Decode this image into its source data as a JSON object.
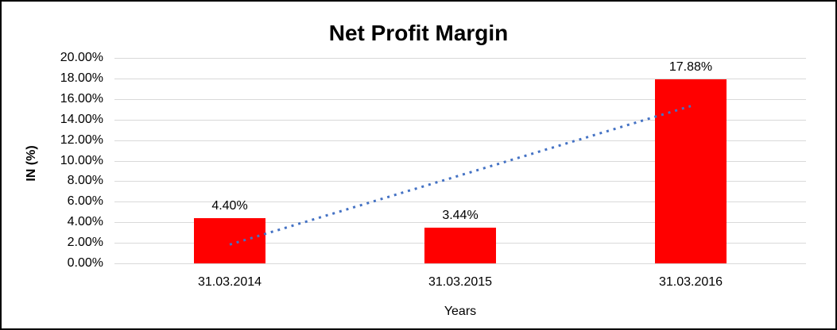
{
  "window": {
    "background_color": "#ffffff",
    "border_color": "#000000"
  },
  "chart_data": {
    "type": "bar",
    "title": "Net Profit Margin",
    "xlabel": "Years",
    "ylabel": "IN (%)",
    "categories": [
      "31.03.2014",
      "31.03.2015",
      "31.03.2016"
    ],
    "values": [
      4.4,
      3.44,
      17.88
    ],
    "data_labels": [
      "4.40%",
      "3.44%",
      "17.88%"
    ],
    "ylim": [
      0,
      20
    ],
    "y_ticks": [
      {
        "value": 0,
        "label": "0.00%"
      },
      {
        "value": 2,
        "label": "2.00%"
      },
      {
        "value": 4,
        "label": "4.00%"
      },
      {
        "value": 6,
        "label": "6.00%"
      },
      {
        "value": 8,
        "label": "8.00%"
      },
      {
        "value": 10,
        "label": "10.00%"
      },
      {
        "value": 12,
        "label": "12.00%"
      },
      {
        "value": 14,
        "label": "14.00%"
      },
      {
        "value": 16,
        "label": "16.00%"
      },
      {
        "value": 18,
        "label": "18.00%"
      },
      {
        "value": 20,
        "label": "20.00%"
      }
    ],
    "grid": true,
    "legend": "none",
    "bar_color": "#FF0000",
    "gridline_color": "#D9D9D9",
    "text_color": "#000000",
    "trendline": {
      "type": "linear",
      "style": "dotted",
      "color": "#4472C4",
      "start_value": 1.83,
      "end_value": 15.31,
      "start_category_index": 0,
      "end_category_index": 2
    }
  }
}
